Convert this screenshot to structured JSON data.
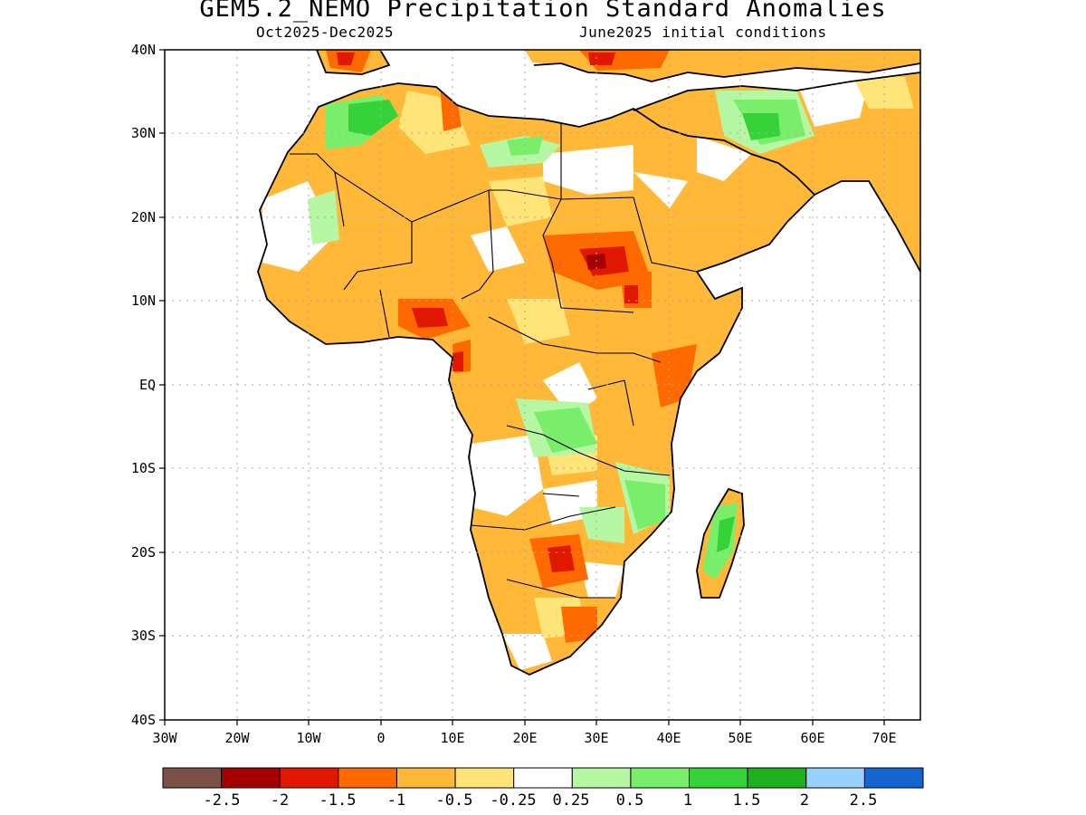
{
  "title": "GEM5.2_NEMO Precipitation Standard Anomalies",
  "period": "Oct2025-Dec2025",
  "init": "June2025 initial conditions",
  "lat_ticks": [
    "40N",
    "30N",
    "20N",
    "10N",
    "EQ",
    "10S",
    "20S",
    "30S",
    "40S"
  ],
  "lon_ticks": [
    "30W",
    "20W",
    "10W",
    "0",
    "10E",
    "20E",
    "30E",
    "40E",
    "50E",
    "60E",
    "70E"
  ],
  "colorbar": {
    "colors": [
      "#7b5046",
      "#a50000",
      "#e01800",
      "#ff6a00",
      "#ffb838",
      "#ffe47a",
      "#ffffff",
      "#b6f7a4",
      "#78ee6a",
      "#36d23a",
      "#1eb01e",
      "#96d2fa",
      "#1464d2"
    ],
    "labels": [
      "-2.5",
      "-2",
      "-1.5",
      "-1",
      "-0.5",
      "-0.25",
      "0.25",
      "0.5",
      "1",
      "1.5",
      "2",
      "2.5"
    ]
  }
}
